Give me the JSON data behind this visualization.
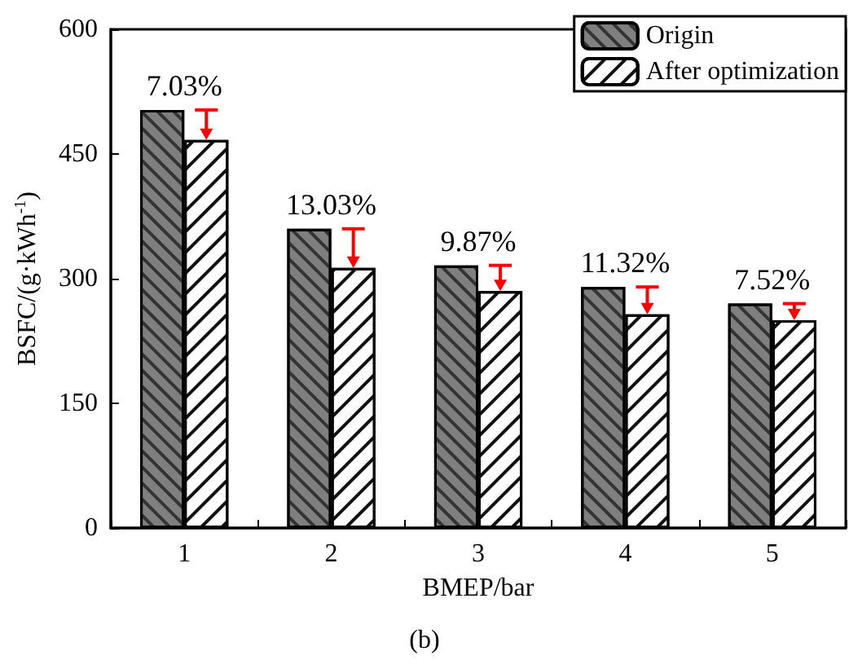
{
  "chart_data": {
    "type": "bar",
    "xlabel": "BMEP/bar",
    "ylabel": "BSFC/(g·kWh$^{-1}$)",
    "categories": [
      "1",
      "2",
      "3",
      "4",
      "5"
    ],
    "series": [
      {
        "name": "Origin",
        "color": "#7f7f7f",
        "values": [
          503,
          360,
          316,
          290,
          270
        ]
      },
      {
        "name": "After optimization",
        "color": "#ffffff",
        "values": [
          467,
          313,
          285,
          257,
          250
        ]
      }
    ],
    "ylim": [
      0,
      600
    ],
    "yticks": [
      0,
      150,
      300,
      450,
      600
    ],
    "grid": false,
    "legend": "top right",
    "annotations": [
      {
        "text": "7.03%",
        "x": "1",
        "y": 503
      },
      {
        "text": "13.03%",
        "x": "2",
        "y": 360
      },
      {
        "text": "9.87%",
        "x": "3",
        "y": 316
      },
      {
        "text": "11.32%",
        "x": "4",
        "y": 290
      },
      {
        "text": "7.52%",
        "x": "5",
        "y": 270
      },
      "(b)"
    ]
  }
}
